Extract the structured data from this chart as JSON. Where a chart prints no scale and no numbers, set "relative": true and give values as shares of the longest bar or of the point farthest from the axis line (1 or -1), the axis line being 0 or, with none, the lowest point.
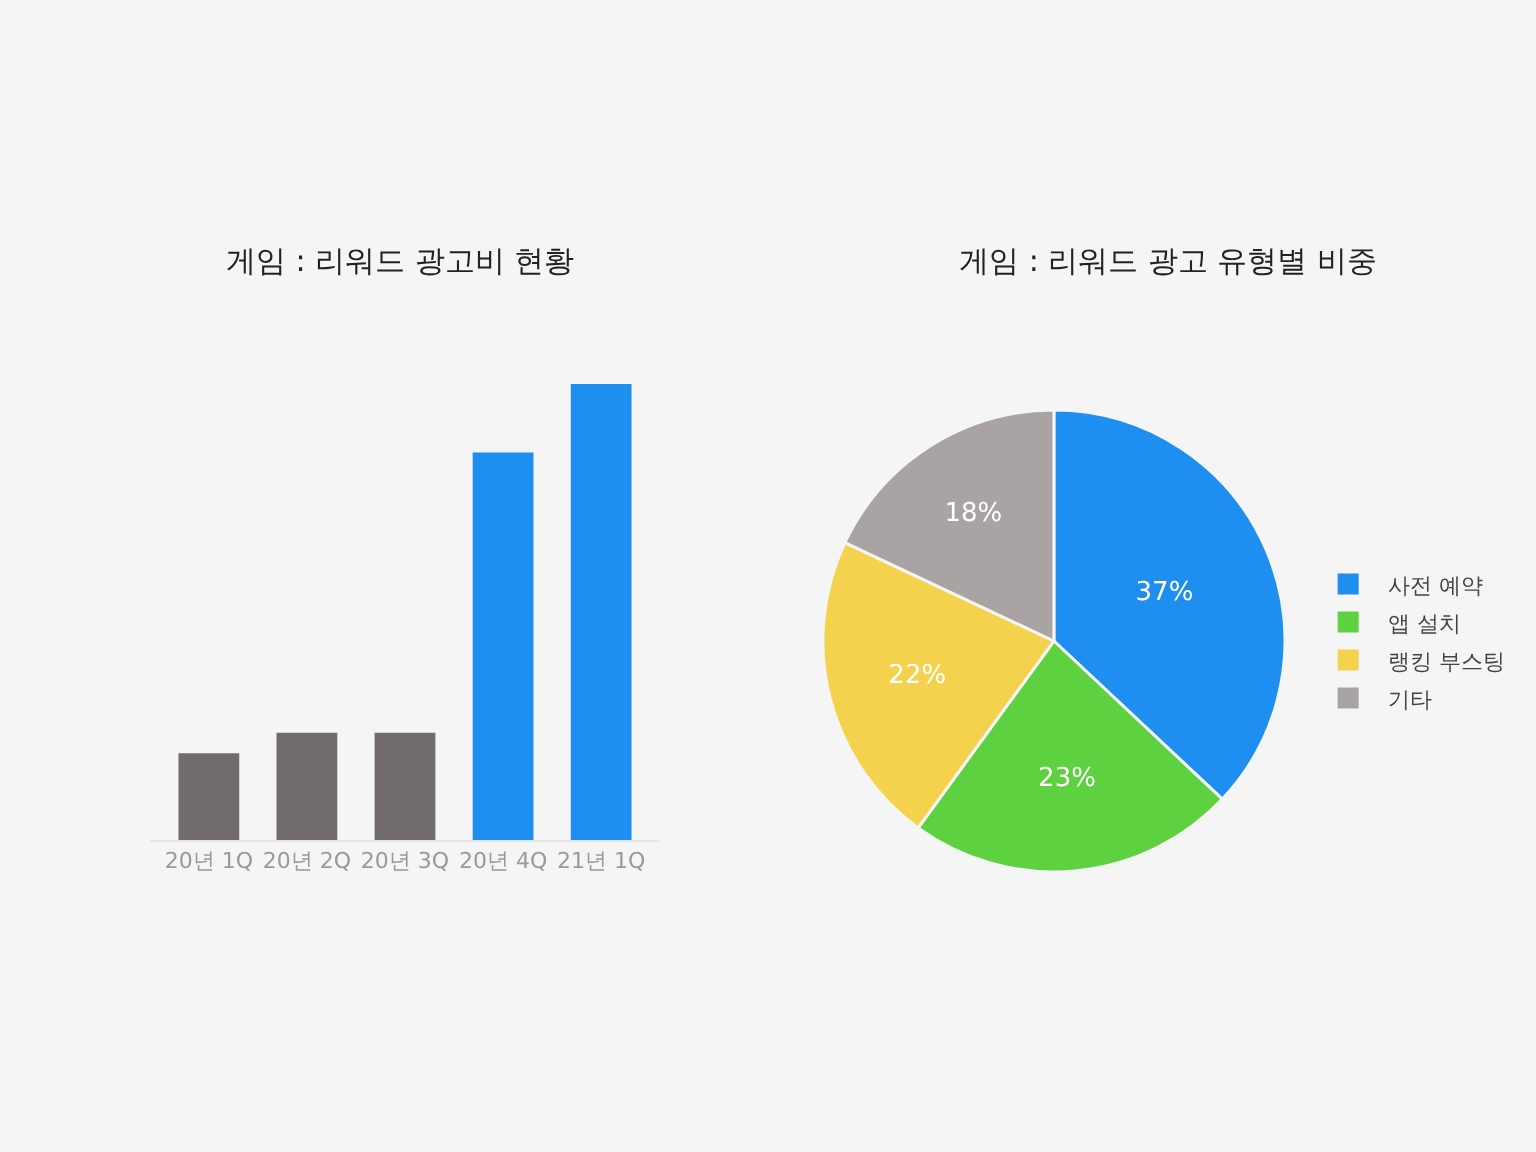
{
  "chart_data": [
    {
      "type": "bar",
      "title": "게임 : 리워드 광고비 현황",
      "relative": true,
      "categories": [
        "20년 1Q",
        "20년 2Q",
        "20년 3Q",
        "20년 4Q",
        "21년 1Q"
      ],
      "values": [
        0.19,
        0.235,
        0.235,
        0.85,
        1
      ],
      "colors": [
        "#716c6b",
        "#716c6b",
        "#716c6b",
        "#1f8ef1",
        "#1f8ef1"
      ],
      "legend": false,
      "grid": false
    },
    {
      "type": "pie",
      "title": "게임 : 리워드 광고 유형별 비중",
      "categories": [
        "사전 예약",
        "앱 설치",
        "랭킹 부스팅",
        "기타"
      ],
      "values": [
        37,
        23,
        22,
        18
      ],
      "colors": [
        "#1f8ef1",
        "#5dd13f",
        "#f5d24e",
        "#a9a4a3"
      ],
      "value_labels": [
        "37%",
        "23%",
        "22%",
        "18%"
      ],
      "legend": "right"
    }
  ]
}
